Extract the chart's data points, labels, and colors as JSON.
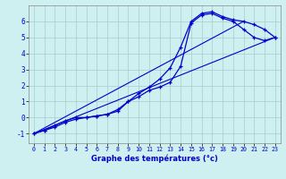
{
  "xlabel": "Graphe des températures (°c)",
  "background_color": "#cef0f0",
  "grid_color": "#aacccc",
  "line_color": "#0000cc",
  "xlim": [
    -0.5,
    23.5
  ],
  "ylim": [
    -1.6,
    7.0
  ],
  "yticks": [
    -1,
    0,
    1,
    2,
    3,
    4,
    5,
    6
  ],
  "xticks": [
    0,
    1,
    2,
    3,
    4,
    5,
    6,
    7,
    8,
    9,
    10,
    11,
    12,
    13,
    14,
    15,
    16,
    17,
    18,
    19,
    20,
    21,
    22,
    23
  ],
  "line1_x": [
    0,
    1,
    2,
    3,
    4,
    5,
    6,
    7,
    8,
    9,
    10,
    11,
    12,
    13,
    14,
    15,
    16,
    17,
    18,
    19,
    20,
    21,
    22,
    23
  ],
  "line1_y": [
    -1.0,
    -0.8,
    -0.6,
    -0.3,
    -0.1,
    0.0,
    0.1,
    0.2,
    0.5,
    1.0,
    1.5,
    1.9,
    2.4,
    3.1,
    4.4,
    6.0,
    6.5,
    6.6,
    6.3,
    6.1,
    6.0,
    5.8,
    5.5,
    5.0
  ],
  "line2_x": [
    0,
    1,
    2,
    3,
    4,
    5,
    6,
    7,
    8,
    9,
    10,
    11,
    12,
    13,
    14,
    15,
    16,
    17,
    18,
    19,
    20,
    21,
    22,
    23
  ],
  "line2_y": [
    -1.0,
    -0.8,
    -0.5,
    -0.2,
    0.0,
    0.0,
    0.1,
    0.2,
    0.4,
    1.0,
    1.3,
    1.7,
    1.9,
    2.2,
    3.2,
    5.9,
    6.4,
    6.5,
    6.2,
    6.0,
    5.5,
    5.0,
    4.8,
    5.0
  ],
  "line3_x": [
    0,
    23
  ],
  "line3_y": [
    -1.0,
    5.0
  ],
  "line4_x": [
    0,
    20
  ],
  "line4_y": [
    -1.0,
    6.0
  ]
}
